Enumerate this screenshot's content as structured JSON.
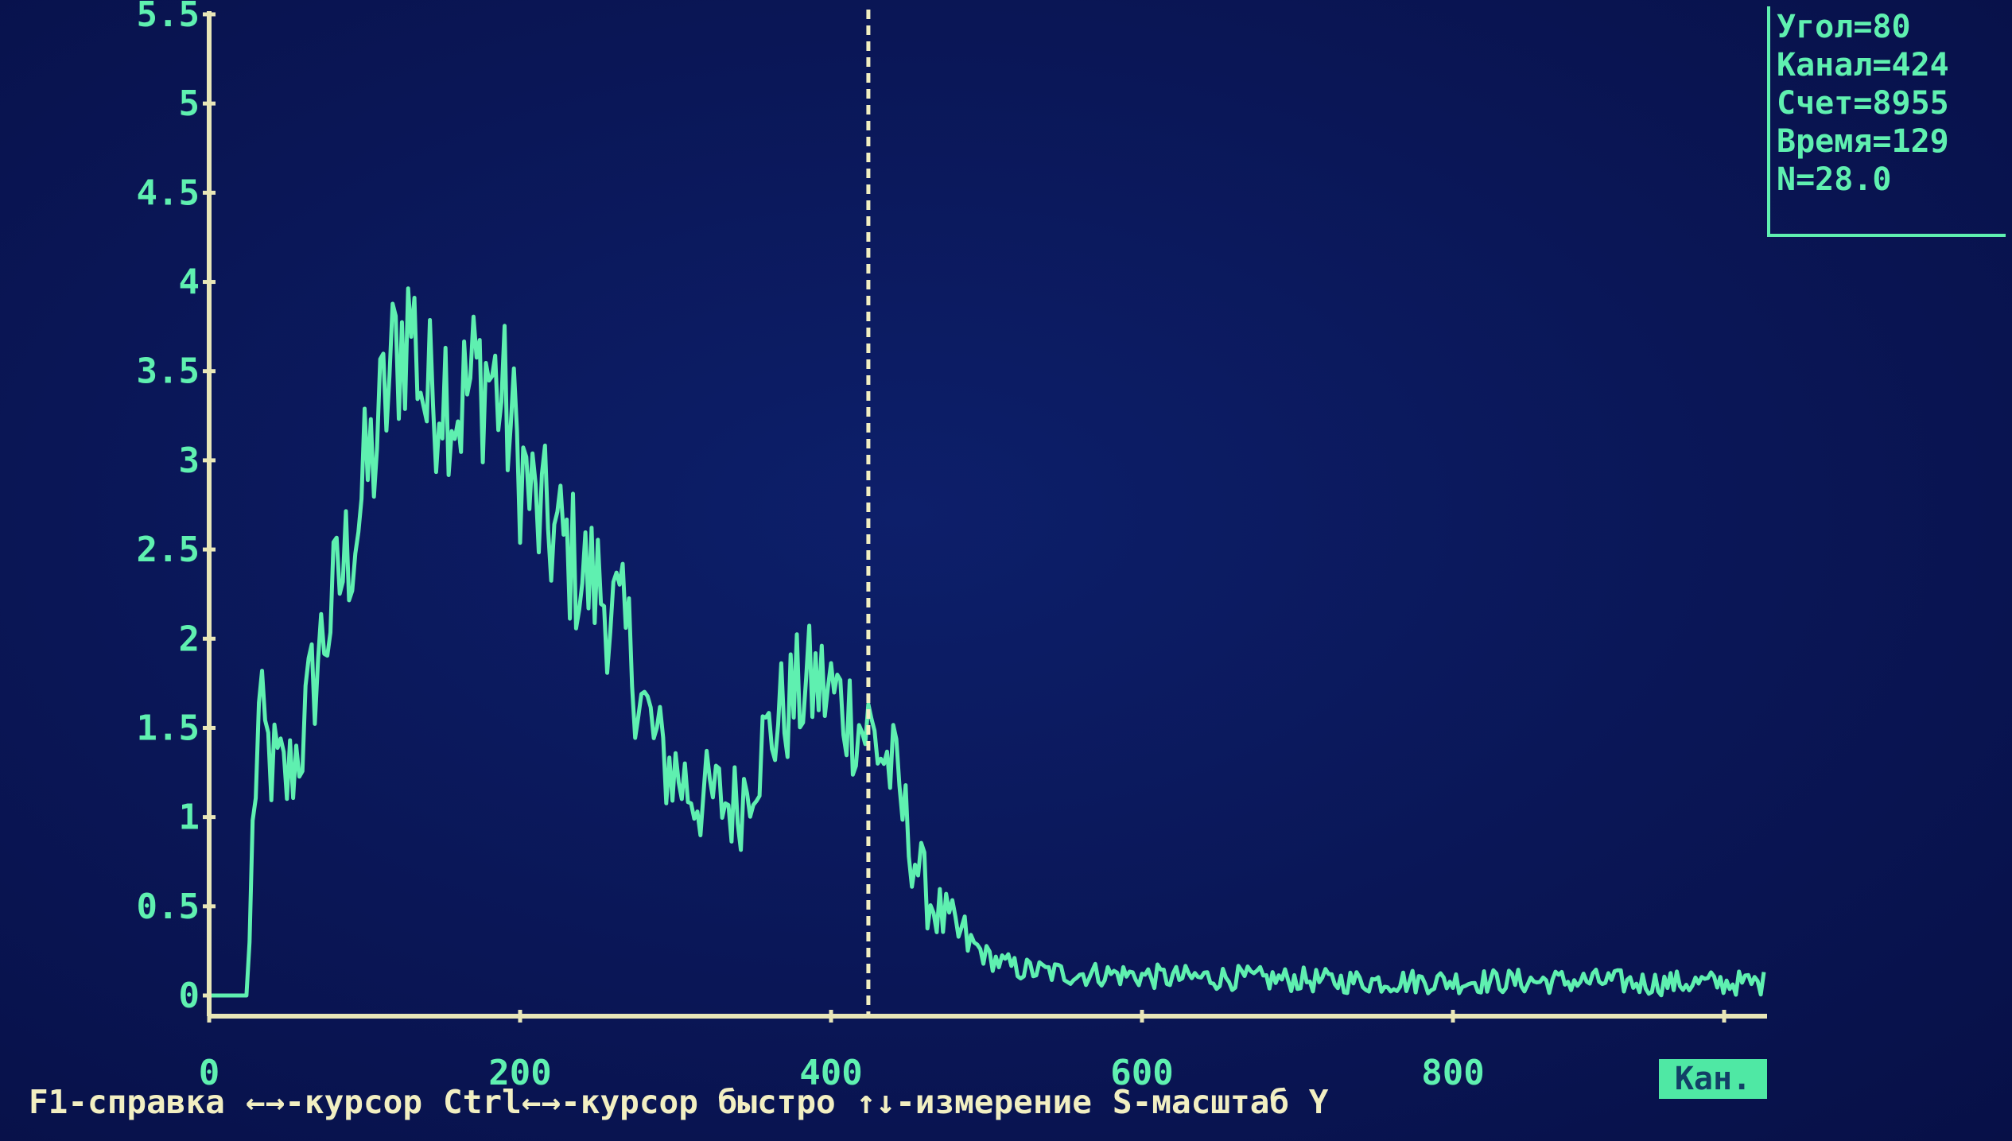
{
  "chart_data": {
    "type": "line",
    "title": "",
    "xlabel": "Кан.",
    "ylabel": "",
    "xlim": [
      0,
      1000
    ],
    "ylim": [
      0,
      5.5
    ],
    "x_ticks": [
      0,
      200,
      400,
      600,
      800
    ],
    "y_ticks": [
      "0",
      "0.5",
      "1",
      "1.5",
      "2",
      "2.5",
      "3",
      "3.5",
      "4",
      "4.5",
      "5",
      "5.5"
    ],
    "cursor_channel": 424,
    "grid": false,
    "legend": "none",
    "series": [
      {
        "color": "#5ff0b0",
        "x": [
          0,
          10,
          20,
          25,
          28,
          32,
          40,
          50,
          60,
          70,
          80,
          90,
          100,
          110,
          120,
          130,
          140,
          150,
          160,
          170,
          180,
          190,
          200,
          210,
          220,
          230,
          240,
          250,
          260,
          270,
          280,
          290,
          300,
          310,
          320,
          330,
          340,
          350,
          360,
          370,
          380,
          390,
          400,
          410,
          420,
          424,
          430,
          440,
          450,
          460,
          470,
          480,
          490,
          500,
          510,
          520,
          540,
          560,
          580,
          600,
          620,
          640,
          660,
          680,
          700,
          720,
          740,
          760,
          780,
          800,
          820,
          840,
          860,
          880,
          900,
          920,
          940,
          960,
          980,
          1000
        ],
        "y": [
          0,
          0,
          0,
          0,
          0.9,
          1.55,
          1.3,
          1.2,
          1.45,
          1.9,
          2.2,
          2.5,
          2.85,
          3.2,
          3.6,
          3.8,
          3.3,
          3.5,
          3.3,
          3.45,
          3.5,
          3.3,
          3.0,
          2.7,
          2.6,
          2.5,
          2.35,
          2.3,
          2.15,
          1.95,
          1.6,
          1.35,
          1.25,
          1.15,
          1.1,
          1.1,
          1.05,
          1.3,
          1.45,
          1.6,
          1.7,
          1.75,
          1.7,
          1.6,
          1.5,
          1.5,
          1.4,
          1.25,
          0.9,
          0.6,
          0.45,
          0.35,
          0.3,
          0.22,
          0.18,
          0.15,
          0.13,
          0.12,
          0.12,
          0.11,
          0.1,
          0.1,
          0.1,
          0.09,
          0.09,
          0.08,
          0.08,
          0.08,
          0.08,
          0.08,
          0.08,
          0.08,
          0.08,
          0.08,
          0.08,
          0.07,
          0.07,
          0.07,
          0.07,
          0.07
        ]
      }
    ]
  },
  "info": {
    "angle": "Угол=80",
    "channel": "Канал=424",
    "count": "Счет=8955",
    "time": "Время=129",
    "n": "N=28.0"
  },
  "status_bar": {
    "help": "F1-справка",
    "cursor": "←→-курсор",
    "cursor_fast": "Ctrl←→-курсор быстро",
    "measure": "↑↓-измерение",
    "scale": "S-масштаб Y"
  },
  "x_axis_unit": "Кан.",
  "colors": {
    "background": "#0a1656",
    "trace": "#5ff0b0",
    "axis": "#e8e6b8",
    "cursor": "#f2efc2"
  }
}
